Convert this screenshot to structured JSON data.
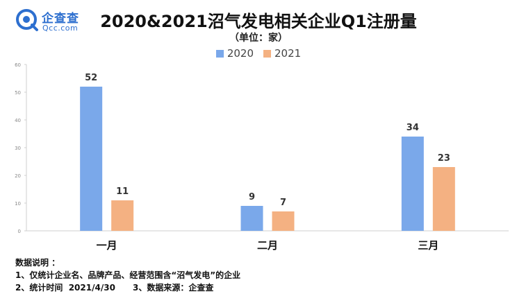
{
  "logo": {
    "name_cn": "企查查",
    "name_en": "Qcc.com"
  },
  "colors": {
    "series_2020": "#7aa8ea",
    "series_2021": "#f4b182",
    "brand": "#2d6fcf"
  },
  "notes": {
    "heading": "数据说明 ：",
    "line1": "1、仅统计企业名、品牌产品、经营范围含“沼气发电”的企业",
    "line2_a": "2、统计时间  2021/4/30",
    "line2_b": "3、数据来源：企查查"
  },
  "chart_data": {
    "type": "bar",
    "title": "2020&2021沼气发电相关企业Q1注册量",
    "subtitle": "（单位：家）",
    "categories": [
      "一月",
      "二月",
      "三月"
    ],
    "series": [
      {
        "name": "2020",
        "values": [
          52,
          9,
          34
        ]
      },
      {
        "name": "2021",
        "values": [
          11,
          7,
          23
        ]
      }
    ],
    "yticks": [
      0,
      10,
      20,
      30,
      40,
      50,
      60
    ],
    "ylim": [
      0,
      60
    ],
    "legend": "top-center",
    "grid": false
  }
}
